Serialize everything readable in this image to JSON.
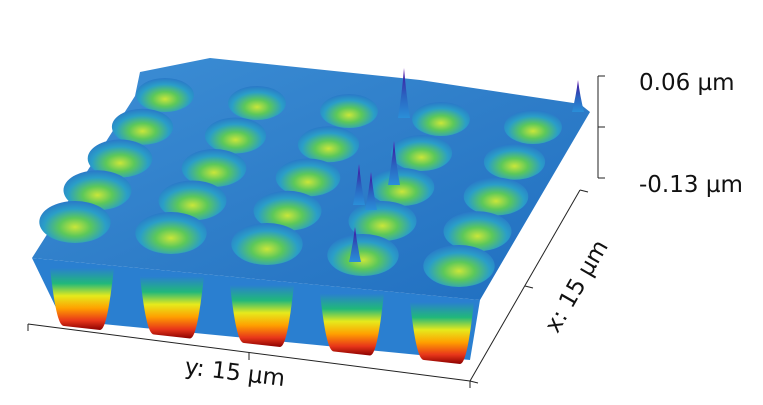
{
  "chart_data": {
    "type": "surface3d",
    "z_ticks": [
      "0.06 µm",
      "-0.13 µm"
    ],
    "zlim": [
      -0.13,
      0.06
    ],
    "x_axis_label": "x: 15 µm",
    "y_axis_label": "y: 15 µm",
    "x_range_um": 15,
    "y_range_um": 15,
    "pits": {
      "rows": 5,
      "cols": 5,
      "depth_um": -0.13
    },
    "spikes": [
      {
        "label": "spike",
        "height_um": 0.06
      },
      {
        "label": "spike",
        "height_um": 0.05
      },
      {
        "label": "spike",
        "height_um": 0.045
      },
      {
        "label": "spike",
        "height_um": 0.04
      },
      {
        "label": "spike",
        "height_um": 0.035
      },
      {
        "label": "spike",
        "height_um": 0.03
      }
    ],
    "colormap": [
      "#8b0000",
      "#e8361a",
      "#ffa000",
      "#f5ef19",
      "#8fd32a",
      "#21b87a",
      "#2a9ed8",
      "#2a63c0",
      "#3b2aa8",
      "#6a0db0"
    ],
    "grid": false,
    "legend": "none"
  }
}
